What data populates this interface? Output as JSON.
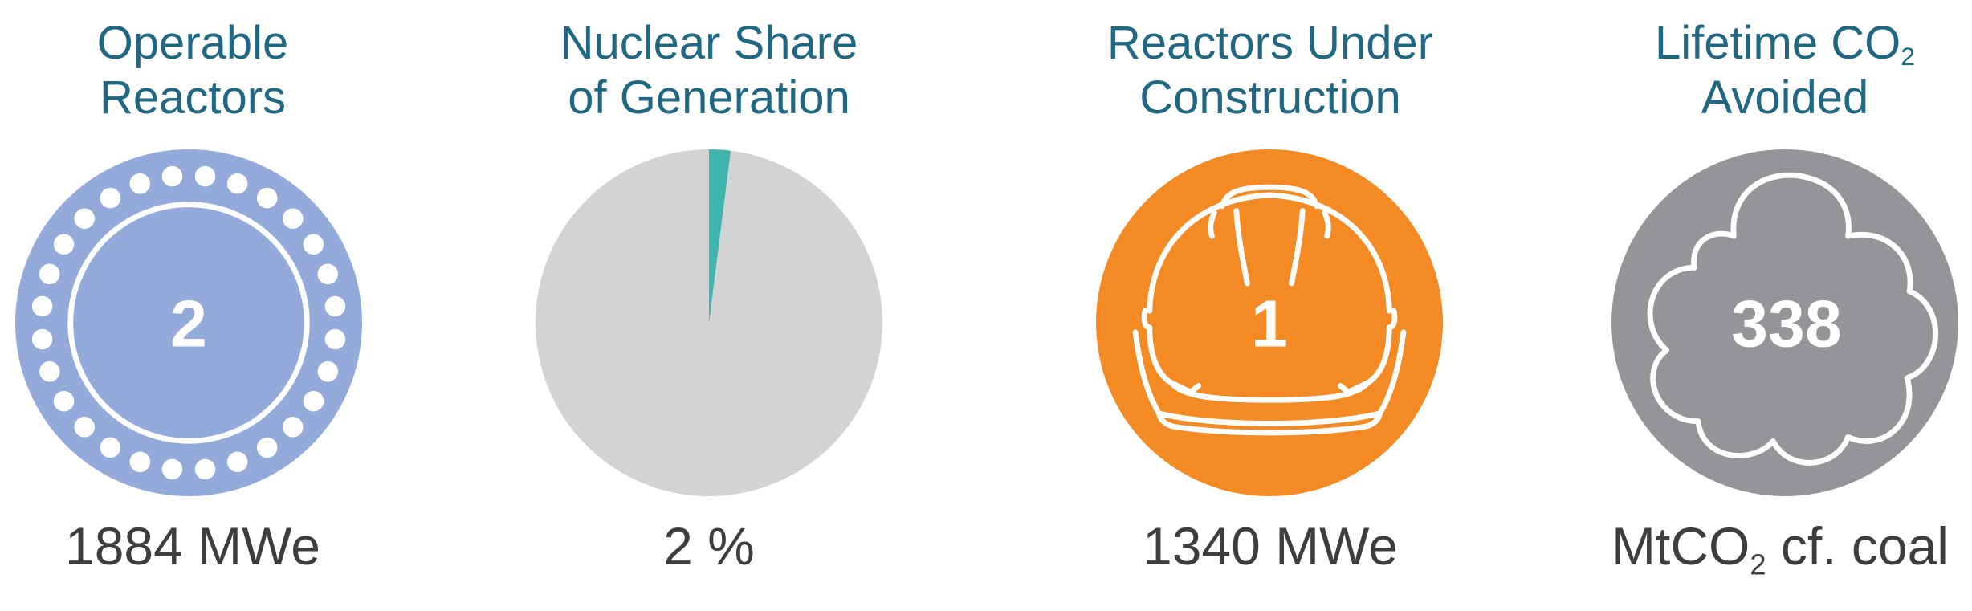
{
  "colors": {
    "title": "#1f6783",
    "caption": "#3d3d3d",
    "reactors": "#93aadb",
    "pie_background": "#d1d3d4",
    "pie_slice": "#3fb4ad",
    "construction": "#f38a23",
    "co2": "#939598"
  },
  "panels": {
    "operable": {
      "title_line1": "Operable",
      "title_line2": "Reactors",
      "number": "2",
      "caption": "1884 MWe",
      "icon": "reactor-ring-icon"
    },
    "share": {
      "title_line1": "Nuclear Share",
      "title_line2": "of Generation",
      "caption": "2 %",
      "share_percent": 2
    },
    "construction": {
      "title_line1": "Reactors Under",
      "title_line2": "Construction",
      "number": "1",
      "caption": "1340 MWe",
      "icon": "hard-hat-icon"
    },
    "co2": {
      "title_line1_main": "Lifetime CO",
      "title_line1_sub": "2",
      "title_line2": "Avoided",
      "number": "338",
      "caption_main": "MtCO",
      "caption_sub": "2",
      "caption_rest": " cf. coal",
      "icon": "cloud-icon"
    }
  }
}
